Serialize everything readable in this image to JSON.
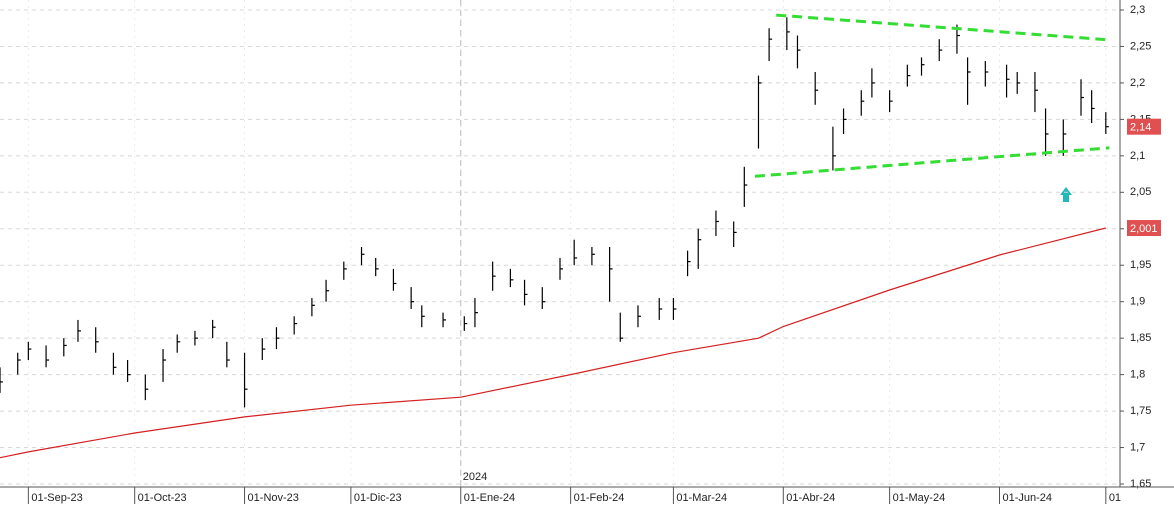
{
  "chart_data": {
    "type": "ohlc",
    "x": [
      "2023-08-24",
      "2023-08-29",
      "2023-09-01",
      "2023-09-06",
      "2023-09-11",
      "2023-09-15",
      "2023-09-20",
      "2023-09-25",
      "2023-09-29",
      "2023-10-04",
      "2023-10-09",
      "2023-10-13",
      "2023-10-18",
      "2023-10-23",
      "2023-10-27",
      "2023-11-01",
      "2023-11-06",
      "2023-11-10",
      "2023-11-15",
      "2023-11-20",
      "2023-11-24",
      "2023-11-29",
      "2023-12-04",
      "2023-12-08",
      "2023-12-13",
      "2023-12-18",
      "2023-12-21",
      "2023-12-27",
      "2024-01-02",
      "2024-01-05",
      "2024-01-10",
      "2024-01-15",
      "2024-01-19",
      "2024-01-24",
      "2024-01-29",
      "2024-02-02",
      "2024-02-07",
      "2024-02-12",
      "2024-02-15",
      "2024-02-20",
      "2024-02-26",
      "2024-03-01",
      "2024-03-05",
      "2024-03-08",
      "2024-03-13",
      "2024-03-18",
      "2024-03-21",
      "2024-03-25",
      "2024-03-28",
      "2024-04-02",
      "2024-04-05",
      "2024-04-10",
      "2024-04-15",
      "2024-04-18",
      "2024-04-23",
      "2024-04-26",
      "2024-05-01",
      "2024-05-06",
      "2024-05-10",
      "2024-05-15",
      "2024-05-20",
      "2024-05-23",
      "2024-05-28",
      "2024-06-03",
      "2024-06-06",
      "2024-06-11",
      "2024-06-14",
      "2024-06-19",
      "2024-06-24",
      "2024-06-27",
      "2024-07-01"
    ],
    "high": [
      1.81,
      1.83,
      1.845,
      1.84,
      1.85,
      1.875,
      1.865,
      1.83,
      1.82,
      1.8,
      1.835,
      1.855,
      1.86,
      1.875,
      1.845,
      1.83,
      1.85,
      1.865,
      1.88,
      1.905,
      1.93,
      1.955,
      1.975,
      1.96,
      1.945,
      1.92,
      1.895,
      1.885,
      1.88,
      1.905,
      1.955,
      1.945,
      1.93,
      1.92,
      1.96,
      1.985,
      1.975,
      1.975,
      1.885,
      1.895,
      1.905,
      1.905,
      1.97,
      2.0,
      2.025,
      2.01,
      2.085,
      2.21,
      2.275,
      2.29,
      2.265,
      2.215,
      2.14,
      2.165,
      2.19,
      2.22,
      2.19,
      2.225,
      2.235,
      2.26,
      2.28,
      2.235,
      2.23,
      2.225,
      2.215,
      2.215,
      2.165,
      2.15,
      2.205,
      2.19,
      2.16
    ],
    "low": [
      1.775,
      1.8,
      1.82,
      1.81,
      1.825,
      1.845,
      1.83,
      1.8,
      1.79,
      1.765,
      1.79,
      1.83,
      1.84,
      1.85,
      1.81,
      1.755,
      1.82,
      1.835,
      1.855,
      1.88,
      1.9,
      1.93,
      1.95,
      1.935,
      1.915,
      1.89,
      1.865,
      1.865,
      1.86,
      1.865,
      1.915,
      1.92,
      1.895,
      1.89,
      1.93,
      1.95,
      1.95,
      1.9,
      1.845,
      1.865,
      1.875,
      1.875,
      1.935,
      1.945,
      1.99,
      1.975,
      2.03,
      2.11,
      2.23,
      2.245,
      2.22,
      2.17,
      2.08,
      2.13,
      2.155,
      2.18,
      2.16,
      2.195,
      2.21,
      2.23,
      2.24,
      2.17,
      2.195,
      2.18,
      2.185,
      2.16,
      2.1,
      2.1,
      2.155,
      2.145,
      2.13
    ],
    "close": [
      1.79,
      1.82,
      1.835,
      1.82,
      1.84,
      1.86,
      1.845,
      1.81,
      1.8,
      1.78,
      1.82,
      1.845,
      1.85,
      1.865,
      1.82,
      1.78,
      1.835,
      1.85,
      1.87,
      1.895,
      1.915,
      1.945,
      1.965,
      1.945,
      1.925,
      1.9,
      1.88,
      1.875,
      1.87,
      1.885,
      1.935,
      1.93,
      1.91,
      1.9,
      1.945,
      1.96,
      1.965,
      1.945,
      1.85,
      1.88,
      1.89,
      1.89,
      1.955,
      1.985,
      2.01,
      1.995,
      2.06,
      2.2,
      2.26,
      2.27,
      2.245,
      2.19,
      2.1,
      2.15,
      2.175,
      2.2,
      2.175,
      2.21,
      2.225,
      2.245,
      2.265,
      2.215,
      2.215,
      2.205,
      2.2,
      2.19,
      2.13,
      2.13,
      2.18,
      2.165,
      2.14
    ],
    "bar_color": "#000000",
    "moving_average": {
      "color": "#d42020",
      "x": [
        "2023-08-24",
        "2023-09-01",
        "2023-10-01",
        "2023-11-01",
        "2023-12-01",
        "2024-01-01",
        "2024-02-01",
        "2024-03-01",
        "2024-03-25",
        "2024-04-01",
        "2024-05-01",
        "2024-06-01",
        "2024-07-01"
      ],
      "values": [
        1.686,
        1.694,
        1.72,
        1.742,
        1.758,
        1.769,
        1.8,
        1.83,
        1.85,
        1.866,
        1.916,
        1.964,
        2.001
      ]
    },
    "trendlines": [
      {
        "color": "#33dd33",
        "x": [
          "2024-03-30",
          "2024-07-02"
        ],
        "values": [
          2.293,
          2.259
        ]
      },
      {
        "color": "#33dd33",
        "x": [
          "2024-03-24",
          "2024-07-02"
        ],
        "values": [
          2.072,
          2.111
        ]
      }
    ],
    "price_labels": [
      {
        "value": 2.14,
        "label": "2,14",
        "color": "#e05050"
      },
      {
        "value": 2.001,
        "label": "2,001",
        "color": "#e05050"
      }
    ],
    "year_marker": {
      "x": "2024-01-01",
      "label": "2024"
    },
    "xlim": [
      "2023-08-24",
      "2024-07-05"
    ],
    "xticks": [
      {
        "value": "2023-09-01",
        "label": "01-Sep-23"
      },
      {
        "value": "2023-10-01",
        "label": "01-Oct-23"
      },
      {
        "value": "2023-11-01",
        "label": "01-Nov-23"
      },
      {
        "value": "2023-12-01",
        "label": "01-Dic-23"
      },
      {
        "value": "2024-01-01",
        "label": "01-Ene-24"
      },
      {
        "value": "2024-02-01",
        "label": "01-Feb-24"
      },
      {
        "value": "2024-03-01",
        "label": "01-Mar-24"
      },
      {
        "value": "2024-04-01",
        "label": "01-Abr-24"
      },
      {
        "value": "2024-05-01",
        "label": "01-May-24"
      },
      {
        "value": "2024-06-01",
        "label": "01-Jun-24"
      },
      {
        "value": "2024-07-01",
        "label": "01"
      }
    ],
    "ylim": [
      1.65,
      2.3
    ],
    "yticks": [
      {
        "value": 1.65,
        "label": "1,65"
      },
      {
        "value": 1.7,
        "label": "1,7"
      },
      {
        "value": 1.75,
        "label": "1,75"
      },
      {
        "value": 1.8,
        "label": "1,8"
      },
      {
        "value": 1.85,
        "label": "1,85"
      },
      {
        "value": 1.9,
        "label": "1,9"
      },
      {
        "value": 1.95,
        "label": "1,95"
      },
      {
        "value": 2.0,
        "label": "2"
      },
      {
        "value": 2.05,
        "label": "2,05"
      },
      {
        "value": 2.1,
        "label": "2,1"
      },
      {
        "value": 2.15,
        "label": "2,15"
      },
      {
        "value": 2.2,
        "label": "2,2"
      },
      {
        "value": 2.25,
        "label": "2,25"
      },
      {
        "value": 2.3,
        "label": "2,3"
      }
    ],
    "grid": true
  }
}
